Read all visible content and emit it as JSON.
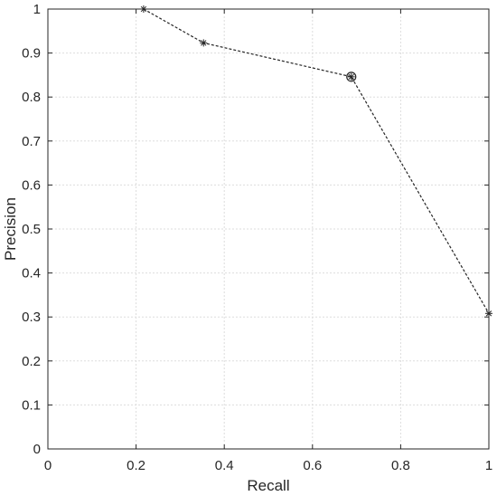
{
  "chart_data": {
    "type": "line",
    "title": "",
    "xlabel": "Recall",
    "ylabel": "Precision",
    "xlim": [
      0,
      1
    ],
    "ylim": [
      0,
      1
    ],
    "x_ticks": [
      "0",
      "0.2",
      "0.4",
      "0.6",
      "0.8",
      "1"
    ],
    "y_ticks": [
      "0",
      "0.1",
      "0.2",
      "0.3",
      "0.4",
      "0.5",
      "0.6",
      "0.7",
      "0.8",
      "0.9",
      "1"
    ],
    "grid": true,
    "legend": "none",
    "series": [
      {
        "line_style": "dashed",
        "marker": "asterisk",
        "color": "#262626",
        "points": [
          {
            "x": 0.217,
            "y": 1.0
          },
          {
            "x": 0.353,
            "y": 0.923
          },
          {
            "x": 0.688,
            "y": 0.846
          },
          {
            "x": 1.0,
            "y": 0.308
          }
        ]
      }
    ],
    "highlighted_point": {
      "x": 0.688,
      "y": 0.846,
      "marker": "circle"
    }
  }
}
